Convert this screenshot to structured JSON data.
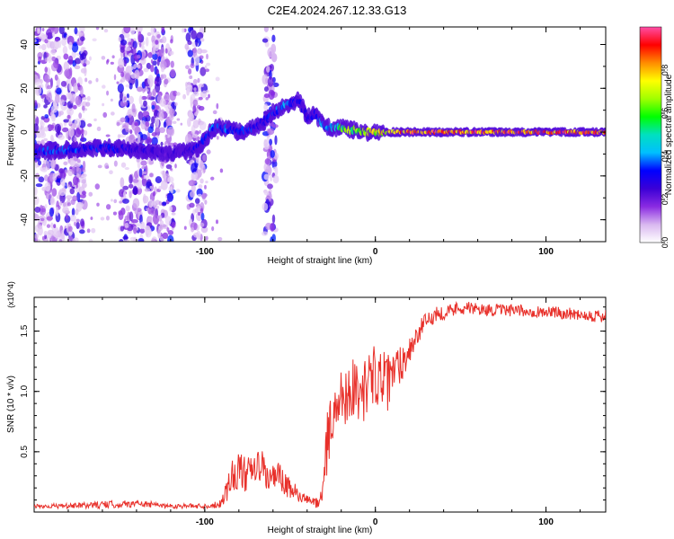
{
  "title": "C2E4.2024.267.12.33.G13",
  "chart_data": [
    {
      "type": "heatmap",
      "title": "C2E4.2024.267.12.33.G13",
      "xlabel": "Height of straight line (km)",
      "ylabel": "Frequency (Hz)",
      "xlim": [
        -200,
        135
      ],
      "ylim": [
        -50,
        48
      ],
      "xticks": [
        -100,
        0,
        100
      ],
      "xtick_labels": [
        "-100",
        "0",
        "100"
      ],
      "yticks": [
        -40,
        -20,
        0,
        20,
        40
      ],
      "ytick_labels": [
        "-40",
        "-20",
        "0",
        "20",
        "40"
      ],
      "colorbar": {
        "label": "Normalized spectral amplitude",
        "range": [
          0,
          1
        ],
        "ticks": [
          0,
          0.2,
          0.4,
          0.6,
          0.8
        ],
        "tick_labels": [
          "0.0",
          "0.2",
          "0.4",
          "0.6",
          "0.8"
        ],
        "colormap": [
          "#ffffff",
          "#d9b8f0",
          "#8a2be2",
          "#3b00d6",
          "#0000ff",
          "#00bfff",
          "#00e0c0",
          "#00ff00",
          "#a0ff00",
          "#ffff00",
          "#ff8c00",
          "#ff0000",
          "#ff4da6"
        ]
      },
      "ridge": {
        "x": [
          -200,
          -180,
          -160,
          -140,
          -120,
          -105,
          -100,
          -95,
          -90,
          -80,
          -70,
          -65,
          -60,
          -55,
          -50,
          -45,
          -40,
          -35,
          -30,
          -25,
          -20,
          -15,
          -10,
          -5,
          0,
          5,
          10,
          20,
          40,
          60,
          80,
          100,
          120,
          135
        ],
        "y": [
          -9,
          -8,
          -7,
          -8,
          -10,
          -8,
          -4,
          2,
          2,
          0,
          2,
          5,
          9,
          11,
          13,
          15,
          7,
          8,
          3,
          2,
          2,
          1,
          1,
          0,
          0,
          0,
          0,
          0,
          0,
          0,
          0,
          0,
          0,
          0
        ],
        "amplitude": [
          0.35,
          0.4,
          0.35,
          0.3,
          0.25,
          0.3,
          0.35,
          0.4,
          0.4,
          0.35,
          0.35,
          0.3,
          0.4,
          0.45,
          0.4,
          0.3,
          0.3,
          0.35,
          0.45,
          0.5,
          0.6,
          0.7,
          0.7,
          0.75,
          0.8,
          0.8,
          0.85,
          0.95,
          0.95,
          0.95,
          0.95,
          0.95,
          0.95,
          0.95
        ]
      },
      "noise_bands": [
        [
          -200,
          -170
        ],
        [
          -150,
          -118
        ],
        [
          -110,
          -100
        ],
        [
          -65,
          -58
        ]
      ]
    },
    {
      "type": "line",
      "xlabel": "Height of straight line (km)",
      "ylabel": "SNR (10 * v/v)",
      "yscale_label": "(x10^4)",
      "xlim": [
        -200,
        135
      ],
      "ylim": [
        0,
        1.78
      ],
      "xticks": [
        -100,
        0,
        100
      ],
      "xtick_labels": [
        "-100",
        "0",
        "100"
      ],
      "yticks": [
        0.5,
        1.0,
        1.5
      ],
      "ytick_labels": [
        "0.5",
        "1.0",
        "1.5"
      ],
      "series": [
        {
          "name": "SNR",
          "color": "#e8302a",
          "x": [
            -200,
            -180,
            -160,
            -140,
            -120,
            -100,
            -92,
            -88,
            -84,
            -80,
            -76,
            -72,
            -68,
            -64,
            -60,
            -56,
            -52,
            -48,
            -44,
            -40,
            -36,
            -32,
            -30,
            -28,
            -26,
            -24,
            -20,
            -16,
            -12,
            -8,
            -4,
            0,
            4,
            8,
            12,
            16,
            20,
            24,
            28,
            32,
            36,
            40,
            50,
            60,
            80,
            100,
            120,
            135
          ],
          "y": [
            0.05,
            0.05,
            0.06,
            0.07,
            0.05,
            0.05,
            0.06,
            0.15,
            0.3,
            0.35,
            0.3,
            0.32,
            0.4,
            0.3,
            0.28,
            0.3,
            0.2,
            0.18,
            0.12,
            0.1,
            0.08,
            0.1,
            0.35,
            0.6,
            0.75,
            0.8,
            0.95,
            1.0,
            1.05,
            0.95,
            1.1,
            1.15,
            1.1,
            1.05,
            1.2,
            1.25,
            1.35,
            1.45,
            1.55,
            1.6,
            1.65,
            1.65,
            1.7,
            1.68,
            1.67,
            1.66,
            1.64,
            1.62
          ],
          "jitter": [
            0.02,
            0.02,
            0.03,
            0.03,
            0.02,
            0.02,
            0.03,
            0.1,
            0.15,
            0.15,
            0.15,
            0.15,
            0.15,
            0.15,
            0.12,
            0.12,
            0.1,
            0.08,
            0.05,
            0.04,
            0.04,
            0.08,
            0.2,
            0.25,
            0.25,
            0.25,
            0.25,
            0.25,
            0.25,
            0.25,
            0.25,
            0.25,
            0.25,
            0.25,
            0.2,
            0.15,
            0.12,
            0.1,
            0.08,
            0.07,
            0.06,
            0.06,
            0.06,
            0.05,
            0.05,
            0.05,
            0.05,
            0.06
          ]
        }
      ]
    }
  ]
}
